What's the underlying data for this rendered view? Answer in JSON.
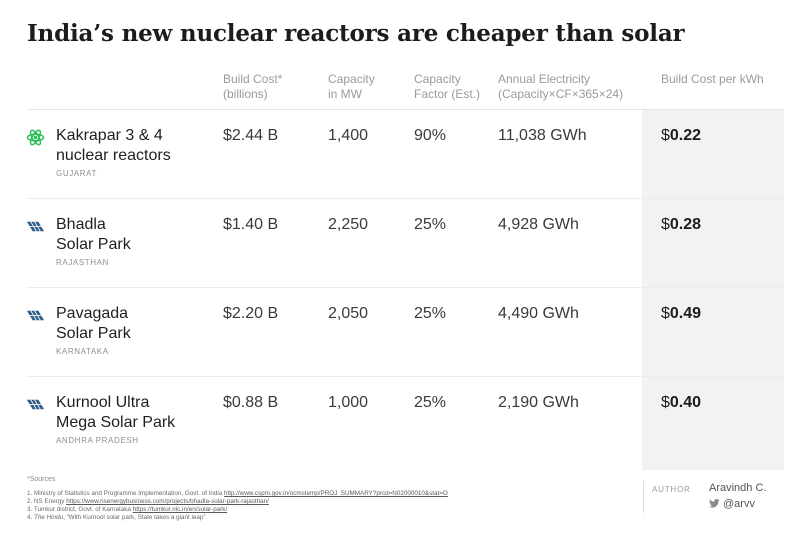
{
  "title": "India’s new nuclear reactors are cheaper than solar",
  "columns": {
    "build_cost": [
      "Build Cost*",
      "(billions)"
    ],
    "capacity": [
      "Capacity",
      "in MW"
    ],
    "capacity_factor": [
      "Capacity",
      "Factor (Est.)"
    ],
    "annual_electricity": [
      "Annual Electricity",
      "(Capacity×CF×365×24)"
    ],
    "cost_per_kwh": "Build Cost per kWh"
  },
  "rows": [
    {
      "icon": "atom-icon",
      "name": [
        "Kakrapar 3 & 4",
        "nuclear reactors"
      ],
      "region": "GUJARAT",
      "build_cost": "$2.44 B",
      "capacity": "1,400",
      "capacity_factor": "90%",
      "annual_electricity": "11,038 GWh",
      "cost_per_kwh_symbol": "$",
      "cost_per_kwh_value": "0.22"
    },
    {
      "icon": "solar-panel-icon",
      "name": [
        "Bhadla",
        "Solar Park"
      ],
      "region": "RAJASTHAN",
      "build_cost": "$1.40 B",
      "capacity": "2,250",
      "capacity_factor": "25%",
      "annual_electricity": "4,928 GWh",
      "cost_per_kwh_symbol": "$",
      "cost_per_kwh_value": "0.28"
    },
    {
      "icon": "solar-panel-icon",
      "name": [
        "Pavagada",
        "Solar Park"
      ],
      "region": "KARNATAKA",
      "build_cost": "$2.20 B",
      "capacity": "2,050",
      "capacity_factor": "25%",
      "annual_electricity": "4,490 GWh",
      "cost_per_kwh_symbol": "$",
      "cost_per_kwh_value": "0.49"
    },
    {
      "icon": "solar-panel-icon",
      "name": [
        "Kurnool Ultra",
        "Mega Solar Park"
      ],
      "region": "ANDHRA PRADESH",
      "build_cost": "$0.88 B",
      "capacity": "1,000",
      "capacity_factor": "25%",
      "annual_electricity": "2,190 GWh",
      "cost_per_kwh_symbol": "$",
      "cost_per_kwh_value": "0.40"
    }
  ],
  "sources": {
    "label": "*Sources",
    "items": [
      {
        "text": "1. Ministry of Statistics and Programme Implementation, Govt. of India ",
        "link": "http://www.cspm.gov.in/ocmstemp/PROJ_SUMMARY?prcd=N02000010&stat=O"
      },
      {
        "text": "2. NS Energy ",
        "link": "https://www.nsenergybusiness.com/projects/bhadla-solar-park-rajasthan/"
      },
      {
        "text": "3. Tumkur district, Govt. of Karnataka ",
        "link": "https://tumkur.nic.in/en/solar-park/"
      },
      {
        "text": "4. ",
        "italic": "The Hindu",
        "rest": ", “With Kurnool solar park, State takes a giant leap”"
      }
    ]
  },
  "author": {
    "label": "AUTHOR",
    "name": "Aravindh C.",
    "handle": "@arvv",
    "handle_icon": "twitter-icon"
  },
  "colors": {
    "nuclear_green": "#2fbf5a",
    "solar_blue": "#2f5d8a",
    "highlight_bg": "#f2f2f2"
  }
}
